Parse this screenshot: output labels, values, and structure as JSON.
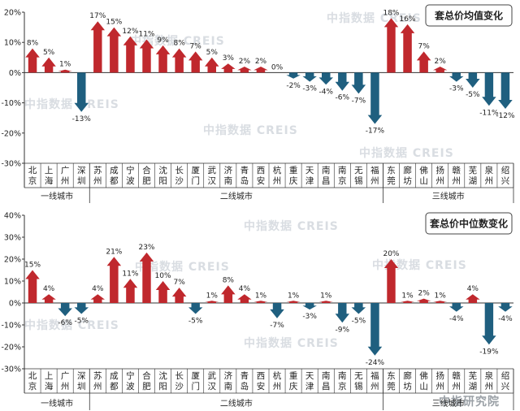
{
  "chart_data": [
    {
      "type": "bar",
      "title": "套总价均值变化",
      "ylim": [
        -30,
        20
      ],
      "yticks": [
        "-30%",
        "-20%",
        "-10%",
        "0%",
        "10%",
        "20%"
      ],
      "yticks_values": [
        -30,
        -20,
        -10,
        0,
        10,
        20
      ],
      "unit": "%",
      "categories": [
        "北京",
        "上海",
        "广州",
        "深圳",
        "苏州",
        "成都",
        "宁波",
        "合肥",
        "沈阳",
        "长沙",
        "厦门",
        "武汉",
        "济南",
        "青岛",
        "西安",
        "杭州",
        "重庆",
        "天津",
        "南昌",
        "南京",
        "无锡",
        "福州",
        "东莞",
        "廊坊",
        "佛山",
        "扬州",
        "赣州",
        "芜湖",
        "泉州",
        "绍兴"
      ],
      "values": [
        8,
        5,
        1,
        -13,
        17,
        15,
        12,
        11,
        9,
        8,
        7,
        5,
        3,
        2,
        2,
        0,
        -2,
        -3,
        -4,
        -6,
        -7,
        -17,
        18,
        16,
        7,
        2,
        -3,
        -5,
        -11,
        -12
      ],
      "value_labels": [
        "8%",
        "5%",
        "1%",
        "-13%",
        "17%",
        "15%",
        "12%",
        "11%",
        "9%",
        "8%",
        "7%",
        "5%",
        "3%",
        "2%",
        "2%",
        "0%",
        "-2%",
        "-3%",
        "-4%",
        "-6%",
        "-7%",
        "-17%",
        "18%",
        "16%",
        "7%",
        "2%",
        "-3%",
        "-5%",
        "-11%",
        "-12%"
      ],
      "groups": [
        {
          "label": "一线城市",
          "start": 0,
          "end": 3
        },
        {
          "label": "二线城市",
          "start": 4,
          "end": 21
        },
        {
          "label": "三线城市",
          "start": 22,
          "end": 29
        }
      ],
      "grid": false
    },
    {
      "type": "bar",
      "title": "套总价中位数变化",
      "ylim": [
        -30,
        40
      ],
      "yticks": [
        "-30%",
        "-20%",
        "-10%",
        "0%",
        "10%",
        "20%",
        "30%",
        "40%"
      ],
      "yticks_values": [
        -30,
        -20,
        -10,
        0,
        10,
        20,
        30,
        40
      ],
      "unit": "%",
      "categories": [
        "北京",
        "上海",
        "广州",
        "深圳",
        "苏州",
        "成都",
        "宁波",
        "合肥",
        "沈阳",
        "长沙",
        "厦门",
        "武汉",
        "济南",
        "青岛",
        "西安",
        "杭州",
        "重庆",
        "天津",
        "南昌",
        "南京",
        "无锡",
        "福州",
        "东莞",
        "廊坊",
        "佛山",
        "扬州",
        "赣州",
        "芜湖",
        "泉州",
        "绍兴"
      ],
      "values": [
        15,
        4,
        -6,
        -5,
        4,
        21,
        11,
        23,
        10,
        7,
        -5,
        1,
        8,
        4,
        1,
        -7,
        1,
        -3,
        1,
        -9,
        -5,
        -24,
        20,
        1,
        2,
        1,
        -4,
        4,
        -19,
        -4
      ],
      "value_labels": [
        "15%",
        "4%",
        "-6%",
        "-5%",
        "4%",
        "21%",
        "11%",
        "23%",
        "10%",
        "7%",
        "-5%",
        "1%",
        "8%",
        "4%",
        "1%",
        "-7%",
        "1%",
        "-3%",
        "1%",
        "-9%",
        "-5%",
        "-24%",
        "20%",
        "1%",
        "2%",
        "1%",
        "-4%",
        "4%",
        "-19%",
        "-4%"
      ],
      "groups": [
        {
          "label": "一线城市",
          "start": 0,
          "end": 3
        },
        {
          "label": "二线城市",
          "start": 4,
          "end": 21
        },
        {
          "label": "三线城市",
          "start": 22,
          "end": 29
        }
      ],
      "grid": false
    }
  ],
  "colors": {
    "up": "#C0282D",
    "down": "#1F5F7F",
    "axis": "#333333",
    "text": "#222222"
  },
  "watermarks": [
    "中指数据 CREIS",
    "中指研究院"
  ]
}
